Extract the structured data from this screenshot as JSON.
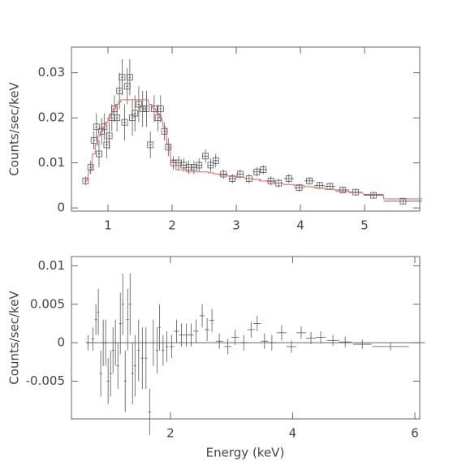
{
  "chart_data": [
    {
      "type": "errorbar",
      "ylabel": "Counts/sec/keV",
      "x": [
        0.65,
        0.73,
        0.78,
        0.82,
        0.86,
        0.9,
        0.94,
        0.98,
        1.02,
        1.06,
        1.1,
        1.14,
        1.18,
        1.22,
        1.26,
        1.3,
        1.34,
        1.38,
        1.42,
        1.48,
        1.54,
        1.6,
        1.66,
        1.72,
        1.78,
        1.82,
        1.88,
        1.94,
        2.02,
        2.1,
        2.18,
        2.26,
        2.34,
        2.42,
        2.52,
        2.6,
        2.68,
        2.8,
        2.94,
        3.06,
        3.2,
        3.32,
        3.42,
        3.54,
        3.66,
        3.82,
        3.98,
        4.14,
        4.3,
        4.46,
        4.66,
        4.86,
        5.14,
        5.6
      ],
      "xerr": [
        0.02,
        0.02,
        0.02,
        0.02,
        0.02,
        0.02,
        0.02,
        0.02,
        0.02,
        0.02,
        0.02,
        0.02,
        0.02,
        0.02,
        0.02,
        0.02,
        0.02,
        0.02,
        0.02,
        0.02,
        0.02,
        0.02,
        0.02,
        0.02,
        0.02,
        0.02,
        0.02,
        0.02,
        0.04,
        0.04,
        0.04,
        0.04,
        0.04,
        0.04,
        0.04,
        0.04,
        0.04,
        0.06,
        0.06,
        0.06,
        0.06,
        0.06,
        0.06,
        0.06,
        0.06,
        0.08,
        0.08,
        0.08,
        0.08,
        0.08,
        0.1,
        0.1,
        0.15,
        0.3
      ],
      "series": [
        {
          "color": "#555555",
          "marker": "square",
          "values": [
            0.006,
            0.009,
            0.015,
            0.018,
            0.012,
            0.017,
            0.018,
            0.014,
            0.016,
            0.02,
            0.022,
            0.02,
            0.026,
            0.029,
            0.019,
            0.027,
            0.029,
            0.02,
            0.021,
            0.023,
            0.022,
            0.022,
            0.014,
            0.022,
            0.02,
            0.022,
            0.017,
            0.0135,
            0.01,
            0.01,
            0.0095,
            0.009,
            0.009,
            0.0095,
            0.0115,
            0.0095,
            0.0105,
            0.0075,
            0.0065,
            0.0075,
            0.0065,
            0.008,
            0.0085,
            0.006,
            0.0055,
            0.0065,
            0.0045,
            0.006,
            0.005,
            0.0048,
            0.004,
            0.0035,
            0.0028,
            0.0015
          ],
          "errors": [
            0.001,
            0.0015,
            0.002,
            0.003,
            0.003,
            0.003,
            0.003,
            0.003,
            0.003,
            0.003,
            0.003,
            0.003,
            0.004,
            0.004,
            0.004,
            0.004,
            0.004,
            0.004,
            0.004,
            0.004,
            0.004,
            0.004,
            0.003,
            0.003,
            0.003,
            0.003,
            0.002,
            0.002,
            0.0015,
            0.0015,
            0.0015,
            0.0015,
            0.0015,
            0.0015,
            0.0015,
            0.0015,
            0.0015,
            0.001,
            0.001,
            0.001,
            0.001,
            0.001,
            0.001,
            0.001,
            0.001,
            0.001,
            0.0008,
            0.0008,
            0.0008,
            0.0008,
            0.0007,
            0.0007,
            0.0006,
            0.0005
          ]
        },
        {
          "color": "#e06060",
          "style": "step",
          "values": [
            0.006,
            0.0085,
            0.012,
            0.014,
            0.016,
            0.017,
            0.018,
            0.019,
            0.02,
            0.021,
            0.022,
            0.023,
            0.0235,
            0.024,
            0.024,
            0.024,
            0.024,
            0.024,
            0.024,
            0.024,
            0.024,
            0.024,
            0.023,
            0.022,
            0.021,
            0.02,
            0.018,
            0.014,
            0.0105,
            0.0085,
            0.0085,
            0.008,
            0.008,
            0.008,
            0.008,
            0.0078,
            0.0076,
            0.0073,
            0.007,
            0.0068,
            0.0065,
            0.0063,
            0.006,
            0.0058,
            0.0055,
            0.0052,
            0.005,
            0.0047,
            0.0044,
            0.0041,
            0.0037,
            0.0034,
            0.003,
            0.002
          ]
        }
      ],
      "xlim": [
        0.43,
        5.86
      ],
      "ylim": [
        -0.0007,
        0.0357
      ],
      "xticks": [
        1,
        2,
        3,
        4,
        5
      ],
      "yticks": [
        0,
        0.01,
        0.02,
        0.03
      ]
    },
    {
      "type": "errorbar",
      "ylabel": "Counts/sec/keV",
      "xlabel": "Energy (keV)",
      "x": [
        0.65,
        0.73,
        0.78,
        0.82,
        0.86,
        0.9,
        0.94,
        0.98,
        1.02,
        1.06,
        1.1,
        1.14,
        1.18,
        1.22,
        1.26,
        1.3,
        1.34,
        1.38,
        1.42,
        1.48,
        1.54,
        1.6,
        1.66,
        1.72,
        1.78,
        1.82,
        1.88,
        1.94,
        2.02,
        2.1,
        2.18,
        2.26,
        2.34,
        2.42,
        2.52,
        2.6,
        2.68,
        2.8,
        2.94,
        3.06,
        3.2,
        3.32,
        3.42,
        3.54,
        3.66,
        3.82,
        3.98,
        4.14,
        4.3,
        4.46,
        4.66,
        4.86,
        5.14,
        5.6
      ],
      "xerr": [
        0.02,
        0.02,
        0.02,
        0.02,
        0.02,
        0.02,
        0.02,
        0.02,
        0.02,
        0.02,
        0.02,
        0.02,
        0.02,
        0.02,
        0.02,
        0.02,
        0.02,
        0.02,
        0.02,
        0.02,
        0.02,
        0.02,
        0.02,
        0.02,
        0.02,
        0.02,
        0.02,
        0.02,
        0.04,
        0.04,
        0.04,
        0.04,
        0.04,
        0.04,
        0.04,
        0.04,
        0.04,
        0.06,
        0.06,
        0.06,
        0.06,
        0.06,
        0.06,
        0.06,
        0.06,
        0.08,
        0.08,
        0.08,
        0.08,
        0.08,
        0.1,
        0.1,
        0.15,
        0.3
      ],
      "series": [
        {
          "color": "#555555",
          "marker": "none",
          "values": [
            0,
            0.0005,
            0.003,
            0.004,
            -0.004,
            0,
            0,
            -0.005,
            -0.004,
            -0.001,
            0,
            -0.003,
            0.0025,
            0.005,
            -0.005,
            0.003,
            0.005,
            -0.004,
            -0.003,
            -0.001,
            -0.002,
            -0.002,
            -0.009,
            0,
            -0.001,
            0.002,
            -0.001,
            -0.0005,
            -0.0005,
            0.0015,
            0.001,
            0.001,
            0.001,
            0.0015,
            0.0035,
            0.0017,
            0.0029,
            0.0002,
            -0.0005,
            0.0007,
            0,
            0.0017,
            0.0025,
            0.0002,
            0,
            0.0013,
            -0.0005,
            0.0013,
            0.0006,
            0.0007,
            0.0003,
            0.0001,
            -0.0002,
            -0.0005
          ],
          "errors": [
            0.001,
            0.0015,
            0.002,
            0.003,
            0.003,
            0.003,
            0.003,
            0.003,
            0.003,
            0.003,
            0.003,
            0.003,
            0.004,
            0.004,
            0.004,
            0.004,
            0.004,
            0.004,
            0.004,
            0.004,
            0.004,
            0.004,
            0.003,
            0.003,
            0.003,
            0.003,
            0.002,
            0.002,
            0.0015,
            0.0015,
            0.0015,
            0.0015,
            0.0015,
            0.0015,
            0.0015,
            0.0015,
            0.0015,
            0.001,
            0.001,
            0.001,
            0.001,
            0.001,
            0.001,
            0.001,
            0.001,
            0.001,
            0.0008,
            0.0008,
            0.0008,
            0.0008,
            0.0007,
            0.0007,
            0.0006,
            0.0005
          ]
        }
      ],
      "xlim": [
        0.38,
        6.08
      ],
      "ylim": [
        -0.0099,
        0.0112
      ],
      "xticks": [
        2,
        4,
        6
      ],
      "yticks": [
        -0.005,
        0,
        0.005,
        0.01
      ]
    }
  ]
}
